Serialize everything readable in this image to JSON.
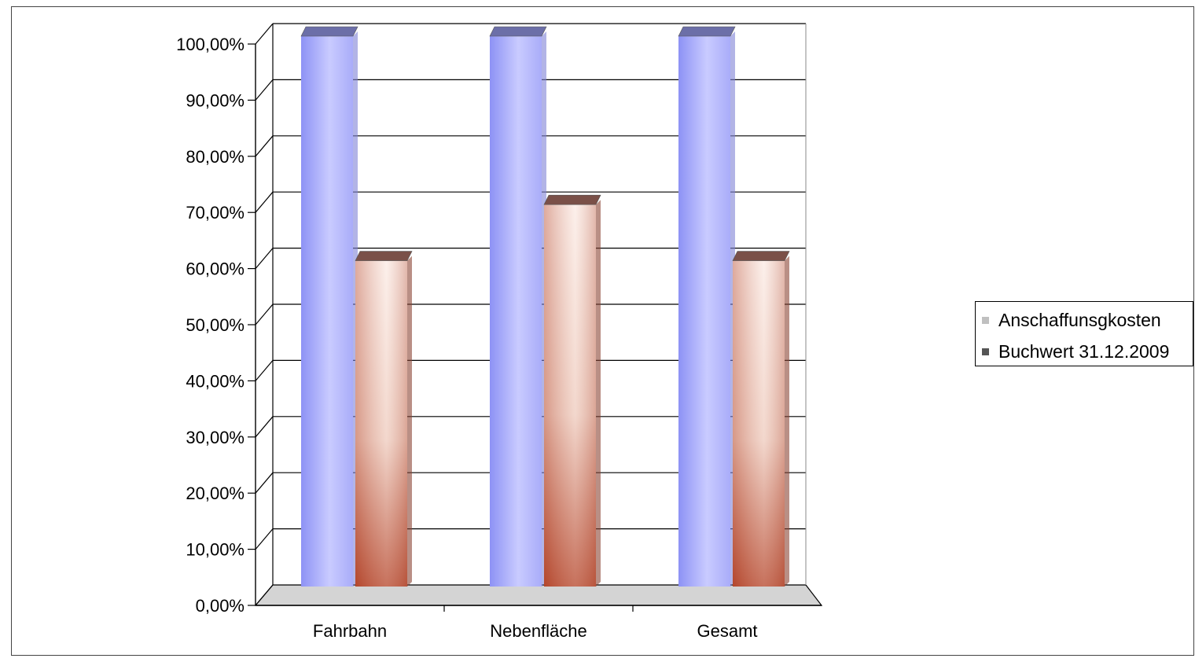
{
  "chart_data": {
    "type": "bar",
    "style": "3d-clustered-column",
    "categories": [
      "Fahrbahn",
      "Nebenfläche",
      "Gesamt"
    ],
    "series": [
      {
        "name": "Anschaffunsgkosten",
        "values": [
          100,
          100,
          100
        ],
        "color": "#9fa3ff"
      },
      {
        "name": "Buchwert 31.12.2009",
        "values": [
          60,
          70,
          60
        ],
        "color": "#c46a52"
      }
    ],
    "yticks": [
      "0,00%",
      "10,00%",
      "20,00%",
      "30,00%",
      "40,00%",
      "50,00%",
      "60,00%",
      "70,00%",
      "80,00%",
      "90,00%",
      "100,00%"
    ],
    "ylim": [
      0,
      100
    ],
    "grid": true,
    "legend_position": "right"
  },
  "legend": {
    "items": [
      {
        "label": "Anschaffunsgkosten",
        "color": "#c0c0c0"
      },
      {
        "label": "Buchwert 31.12.2009",
        "color": "#555555"
      }
    ]
  }
}
